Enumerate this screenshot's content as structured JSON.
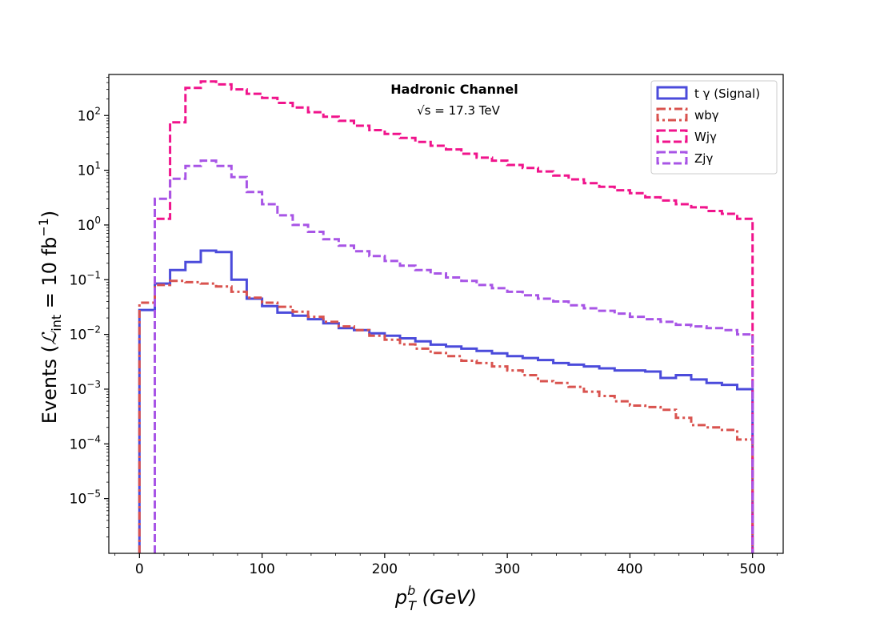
{
  "chart_data": {
    "type": "step-histogram",
    "title": "Hadronic Channel",
    "subtitle": "√s = 17.3 TeV",
    "xlabel": "p_T^b (GeV)",
    "ylabel": "Events (ℒ_int = 10 fb⁻¹)",
    "xlabel_main": "p",
    "xlabel_sup": "b",
    "xlabel_sub": "T",
    "xlabel_unit": " (GeV)",
    "ylabel_prefix": "Events (",
    "ylabel_script": "ℒ",
    "ylabel_sub": "int",
    "ylabel_mid": " = 10 fb",
    "ylabel_sup": "−1",
    "ylabel_suffix": ")",
    "yscale": "log",
    "xlim": [
      -25,
      525
    ],
    "ylim_log10": [
      -6.0,
      2.75
    ],
    "legend_position": "top-right",
    "x_ticks": [
      {
        "value": 0,
        "label": "0"
      },
      {
        "value": 100,
        "label": "100"
      },
      {
        "value": 200,
        "label": "200"
      },
      {
        "value": 300,
        "label": "300"
      },
      {
        "value": 400,
        "label": "400"
      },
      {
        "value": 500,
        "label": "500"
      }
    ],
    "y_ticks": [
      {
        "exp": -5,
        "base": "10",
        "sup": "−5"
      },
      {
        "exp": -4,
        "base": "10",
        "sup": "−4"
      },
      {
        "exp": -3,
        "base": "10",
        "sup": "−3"
      },
      {
        "exp": -2,
        "base": "10",
        "sup": "−2"
      },
      {
        "exp": -1,
        "base": "10",
        "sup": "−1"
      },
      {
        "exp": 0,
        "base": "10",
        "sup": "0"
      },
      {
        "exp": 1,
        "base": "10",
        "sup": "1"
      },
      {
        "exp": 2,
        "base": "10",
        "sup": "2"
      }
    ],
    "series": [
      {
        "name": "t γ (Signal)",
        "color": "#4b4bdb",
        "style": "solid",
        "edges": [
          0,
          12.5,
          25,
          37.5,
          50,
          62.5,
          75,
          87.5,
          100,
          112.5,
          125,
          137.5,
          150,
          162.5,
          175,
          187.5,
          200,
          212.5,
          225,
          237.5,
          250,
          262.5,
          275,
          287.5,
          300,
          312.5,
          325,
          337.5,
          350,
          362.5,
          375,
          387.5,
          400,
          412.5,
          425,
          437.5,
          450,
          462.5,
          475,
          487.5,
          500
        ],
        "values": [
          0.028,
          0.085,
          0.15,
          0.21,
          0.34,
          0.32,
          0.1,
          0.045,
          0.033,
          0.025,
          0.022,
          0.019,
          0.016,
          0.013,
          0.012,
          0.0105,
          0.0095,
          0.0085,
          0.0075,
          0.0065,
          0.006,
          0.0055,
          0.005,
          0.0045,
          0.004,
          0.0037,
          0.0034,
          0.003,
          0.0028,
          0.0026,
          0.0024,
          0.0022,
          0.0022,
          0.0021,
          0.0016,
          0.0018,
          0.0015,
          0.0013,
          0.0012,
          0.001
        ]
      },
      {
        "name": "wbγ",
        "color": "#d9534f",
        "style": "dashdot",
        "edges": [
          0,
          12.5,
          25,
          37.5,
          50,
          62.5,
          75,
          87.5,
          100,
          112.5,
          125,
          137.5,
          150,
          162.5,
          175,
          187.5,
          200,
          212.5,
          225,
          237.5,
          250,
          262.5,
          275,
          287.5,
          300,
          312.5,
          325,
          337.5,
          350,
          362.5,
          375,
          387.5,
          400,
          412.5,
          425,
          437.5,
          450,
          462.5,
          475,
          487.5,
          500
        ],
        "values": [
          0.038,
          0.08,
          0.095,
          0.09,
          0.085,
          0.075,
          0.06,
          0.047,
          0.038,
          0.032,
          0.026,
          0.021,
          0.017,
          0.014,
          0.012,
          0.0095,
          0.008,
          0.0066,
          0.0055,
          0.0046,
          0.004,
          0.0033,
          0.003,
          0.0026,
          0.0022,
          0.0018,
          0.0014,
          0.0013,
          0.0011,
          0.0009,
          0.00075,
          0.0006,
          0.0005,
          0.00047,
          0.00042,
          0.0003,
          0.00022,
          0.0002,
          0.00018,
          0.00012
        ]
      },
      {
        "name": "Wjγ",
        "color": "#f0148c",
        "style": "dashed",
        "edges": [
          12.5,
          25,
          37.5,
          50,
          62.5,
          75,
          87.5,
          100,
          112.5,
          125,
          137.5,
          150,
          162.5,
          175,
          187.5,
          200,
          212.5,
          225,
          237.5,
          250,
          262.5,
          275,
          287.5,
          300,
          312.5,
          325,
          337.5,
          350,
          362.5,
          375,
          387.5,
          400,
          412.5,
          425,
          437.5,
          450,
          462.5,
          475,
          487.5,
          500
        ],
        "values": [
          1.3,
          75,
          320,
          420,
          370,
          300,
          250,
          210,
          170,
          140,
          115,
          95,
          80,
          65,
          54,
          46,
          39,
          33,
          28,
          24,
          20,
          17,
          15,
          12.5,
          11,
          9.5,
          8,
          6.8,
          5.8,
          5,
          4.3,
          3.8,
          3.2,
          2.8,
          2.4,
          2.1,
          1.8,
          1.6,
          1.3
        ]
      },
      {
        "name": "Zjγ",
        "color": "#a855e6",
        "style": "dashed",
        "edges": [
          12.5,
          25,
          37.5,
          50,
          62.5,
          75,
          87.5,
          100,
          112.5,
          125,
          137.5,
          150,
          162.5,
          175,
          187.5,
          200,
          212.5,
          225,
          237.5,
          250,
          262.5,
          275,
          287.5,
          300,
          312.5,
          325,
          337.5,
          350,
          362.5,
          375,
          387.5,
          400,
          412.5,
          425,
          437.5,
          450,
          462.5,
          475,
          487.5,
          500
        ],
        "values": [
          3,
          7,
          12,
          15,
          12,
          7.5,
          4,
          2.4,
          1.5,
          1.0,
          0.75,
          0.55,
          0.42,
          0.33,
          0.27,
          0.22,
          0.18,
          0.15,
          0.13,
          0.11,
          0.095,
          0.08,
          0.07,
          0.06,
          0.052,
          0.045,
          0.04,
          0.034,
          0.03,
          0.027,
          0.024,
          0.021,
          0.019,
          0.017,
          0.015,
          0.014,
          0.013,
          0.012,
          0.01
        ]
      }
    ]
  }
}
